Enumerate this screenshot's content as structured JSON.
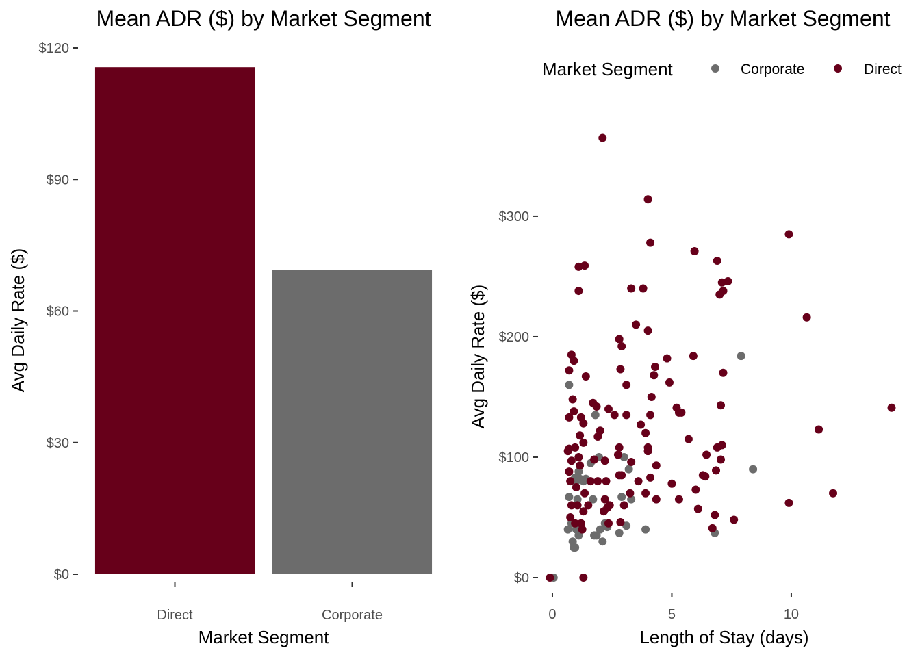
{
  "colors": {
    "direct": "#67001a",
    "corporate": "#6c6c6c"
  },
  "chart_data": [
    {
      "type": "bar",
      "title": "Mean ADR ($) by Market Segment",
      "xlabel": "Market Segment",
      "ylabel": "Avg Daily Rate ($)",
      "categories": [
        "Direct",
        "Corporate"
      ],
      "values": [
        115.6,
        69.4
      ],
      "ylim": [
        0,
        120
      ],
      "yticks": [
        0,
        30,
        60,
        90,
        120
      ],
      "ytick_labels": [
        "$0",
        "$30",
        "$60",
        "$90",
        "$120"
      ],
      "grid": false
    },
    {
      "type": "scatter",
      "title": "Mean ADR ($) by Market Segment",
      "xlabel": "Length of Stay (days)",
      "ylabel": "Avg Daily Rate ($)",
      "legend_title": "Market Segment",
      "legend_position": "top",
      "xlim": [
        -0.2,
        14.3
      ],
      "ylim": [
        0,
        367
      ],
      "xticks": [
        0,
        5,
        10
      ],
      "xtick_labels": [
        "0",
        "5",
        "10"
      ],
      "yticks": [
        0,
        100,
        200,
        300
      ],
      "ytick_labels": [
        "$0",
        "$100",
        "$200",
        "$300"
      ],
      "grid": false,
      "series": [
        {
          "name": "Corporate",
          "points": [
            [
              0.05,
              0
            ],
            [
              0.7,
              160
            ],
            [
              0.65,
              40
            ],
            [
              0.7,
              67
            ],
            [
              0.8,
              45
            ],
            [
              0.85,
              30
            ],
            [
              0.9,
              25
            ],
            [
              0.95,
              25
            ],
            [
              0.9,
              80
            ],
            [
              0.95,
              83
            ],
            [
              1.0,
              80
            ],
            [
              1.05,
              65
            ],
            [
              1.0,
              40
            ],
            [
              1.1,
              35
            ],
            [
              1.1,
              88
            ],
            [
              1.15,
              82
            ],
            [
              1.3,
              80
            ],
            [
              1.4,
              82
            ],
            [
              1.6,
              95
            ],
            [
              1.7,
              65
            ],
            [
              1.75,
              35
            ],
            [
              1.8,
              135
            ],
            [
              1.85,
              35
            ],
            [
              1.95,
              100
            ],
            [
              2.0,
              40
            ],
            [
              2.1,
              30
            ],
            [
              2.2,
              45
            ],
            [
              2.3,
              42
            ],
            [
              2.8,
              37
            ],
            [
              2.9,
              67
            ],
            [
              3.0,
              100
            ],
            [
              3.1,
              43
            ],
            [
              3.2,
              90
            ],
            [
              3.3,
              65
            ],
            [
              3.9,
              40
            ],
            [
              6.8,
              37
            ],
            [
              7.9,
              184
            ],
            [
              8.4,
              90
            ]
          ]
        },
        {
          "name": "Direct",
          "points": [
            [
              -0.1,
              0
            ],
            [
              1.3,
              0
            ],
            [
              2.1,
              365
            ],
            [
              4.0,
              314
            ],
            [
              4.1,
              278
            ],
            [
              1.1,
              258
            ],
            [
              1.35,
              259
            ],
            [
              1.1,
              238
            ],
            [
              3.3,
              240
            ],
            [
              3.8,
              240
            ],
            [
              3.5,
              210
            ],
            [
              4.0,
              205
            ],
            [
              2.8,
              198
            ],
            [
              2.9,
              192
            ],
            [
              0.8,
              185
            ],
            [
              0.9,
              180
            ],
            [
              0.7,
              172
            ],
            [
              1.4,
              167
            ],
            [
              2.85,
              173
            ],
            [
              3.1,
              160
            ],
            [
              4.3,
              175
            ],
            [
              4.25,
              168
            ],
            [
              4.8,
              182
            ],
            [
              4.9,
              162
            ],
            [
              4.15,
              150
            ],
            [
              0.85,
              148
            ],
            [
              0.9,
              138
            ],
            [
              0.7,
              133
            ],
            [
              1.2,
              133
            ],
            [
              1.3,
              128
            ],
            [
              1.7,
              145
            ],
            [
              1.85,
              142
            ],
            [
              2.35,
              140
            ],
            [
              2.6,
              135
            ],
            [
              3.1,
              135
            ],
            [
              4.1,
              135
            ],
            [
              3.7,
              127
            ],
            [
              1.9,
              117
            ],
            [
              2.0,
              122
            ],
            [
              1.15,
              118
            ],
            [
              1.3,
              112
            ],
            [
              0.95,
              108
            ],
            [
              0.7,
              107
            ],
            [
              0.65,
              105
            ],
            [
              1.1,
              100
            ],
            [
              0.8,
              97
            ],
            [
              1.75,
              98
            ],
            [
              2.2,
              97
            ],
            [
              2.8,
              108
            ],
            [
              2.75,
              102
            ],
            [
              3.3,
              96
            ],
            [
              4.0,
              108
            ],
            [
              4.0,
              105
            ],
            [
              3.9,
              120
            ],
            [
              5.2,
              141
            ],
            [
              5.3,
              137
            ],
            [
              5.4,
              137
            ],
            [
              5.7,
              115
            ],
            [
              5.9,
              184
            ],
            [
              5.95,
              271
            ],
            [
              6.0,
              73
            ],
            [
              6.1,
              57
            ],
            [
              6.3,
              85
            ],
            [
              6.4,
              84
            ],
            [
              6.45,
              102
            ],
            [
              6.7,
              41
            ],
            [
              6.8,
              52
            ],
            [
              6.85,
              89
            ],
            [
              6.9,
              108
            ],
            [
              6.9,
              263
            ],
            [
              7.0,
              235
            ],
            [
              7.05,
              98
            ],
            [
              7.05,
              143
            ],
            [
              7.1,
              245
            ],
            [
              7.15,
              238
            ],
            [
              7.1,
              110
            ],
            [
              7.15,
              170
            ],
            [
              7.35,
              246
            ],
            [
              7.6,
              48
            ],
            [
              9.9,
              285
            ],
            [
              9.9,
              62
            ],
            [
              10.65,
              216
            ],
            [
              11.15,
              123
            ],
            [
              11.75,
              70
            ],
            [
              14.2,
              141
            ],
            [
              0.75,
              50
            ],
            [
              0.8,
              60
            ],
            [
              0.95,
              45
            ],
            [
              1.05,
              60
            ],
            [
              1.2,
              45
            ],
            [
              1.25,
              40
            ],
            [
              1.3,
              55
            ],
            [
              1.35,
              70
            ],
            [
              1.5,
              60
            ],
            [
              1.6,
              80
            ],
            [
              1.9,
              80
            ],
            [
              2.15,
              55
            ],
            [
              2.2,
              65
            ],
            [
              2.25,
              80
            ],
            [
              2.3,
              58
            ],
            [
              2.4,
              60
            ],
            [
              2.35,
              45
            ],
            [
              2.8,
              85
            ],
            [
              2.85,
              46
            ],
            [
              2.9,
              85
            ],
            [
              3.0,
              60
            ],
            [
              3.25,
              70
            ],
            [
              3.6,
              80
            ],
            [
              3.9,
              70
            ],
            [
              4.1,
              83
            ],
            [
              4.35,
              93
            ],
            [
              4.35,
              65
            ],
            [
              5.0,
              78
            ],
            [
              5.3,
              65
            ],
            [
              1.0,
              75
            ],
            [
              1.15,
              93
            ],
            [
              0.7,
              88
            ],
            [
              0.75,
              80
            ]
          ]
        }
      ]
    }
  ]
}
